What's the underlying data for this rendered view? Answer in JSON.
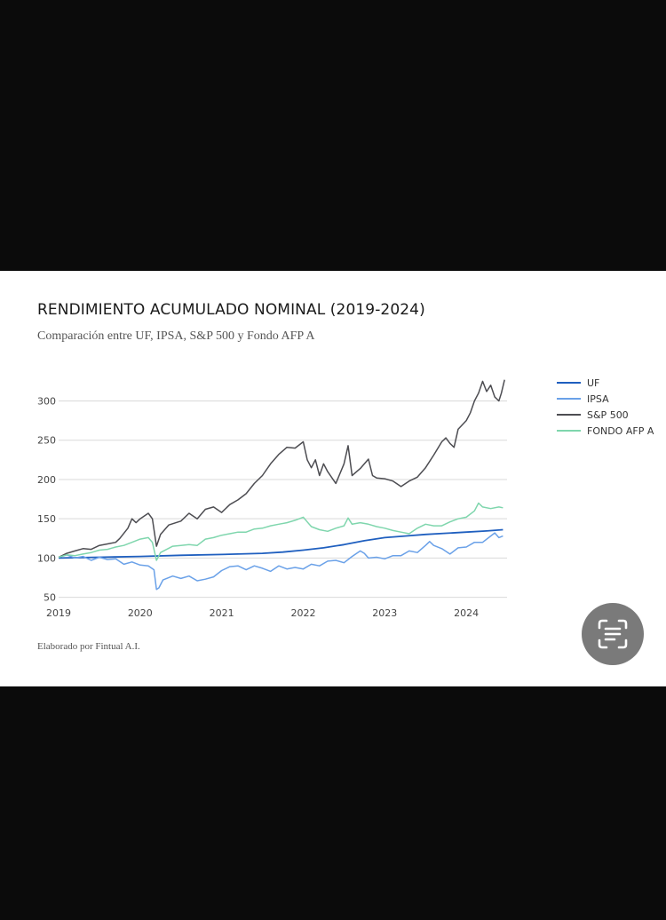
{
  "chart_data": {
    "type": "line",
    "title": "RENDIMIENTO ACUMULADO NOMINAL (2019-2024)",
    "subtitle": "Comparación entre UF, IPSA, S&P 500 y Fondo AFP A",
    "footer": "Elaborado por Fintual A.I.",
    "xlabel": "",
    "ylabel": "",
    "x_ticks": [
      "2019",
      "2020",
      "2021",
      "2022",
      "2023",
      "2024"
    ],
    "y_ticks": [
      "50",
      "100",
      "150",
      "200",
      "250",
      "300"
    ],
    "xlim": [
      2019.0,
      2024.5
    ],
    "ylim": [
      45,
      330
    ],
    "grid": "horizontal",
    "legend_position": "right",
    "series": [
      {
        "name": "UF",
        "color": "#1f5fbf",
        "points": [
          [
            2019.0,
            100
          ],
          [
            2019.5,
            101
          ],
          [
            2020.0,
            102
          ],
          [
            2020.5,
            103.5
          ],
          [
            2021.0,
            104.5
          ],
          [
            2021.5,
            106
          ],
          [
            2021.75,
            107.5
          ],
          [
            2022.0,
            110
          ],
          [
            2022.25,
            113
          ],
          [
            2022.5,
            117
          ],
          [
            2022.75,
            122
          ],
          [
            2023.0,
            126
          ],
          [
            2023.25,
            128
          ],
          [
            2023.5,
            130
          ],
          [
            2023.75,
            131.5
          ],
          [
            2024.0,
            133
          ],
          [
            2024.25,
            134.5
          ],
          [
            2024.45,
            136
          ]
        ]
      },
      {
        "name": "IPSA",
        "color": "#6aa1e8",
        "points": [
          [
            2019.0,
            101
          ],
          [
            2019.1,
            104
          ],
          [
            2019.2,
            100
          ],
          [
            2019.3,
            102
          ],
          [
            2019.4,
            97
          ],
          [
            2019.5,
            101
          ],
          [
            2019.6,
            98
          ],
          [
            2019.7,
            99
          ],
          [
            2019.8,
            92
          ],
          [
            2019.9,
            95
          ],
          [
            2020.0,
            91
          ],
          [
            2020.1,
            90
          ],
          [
            2020.17,
            85
          ],
          [
            2020.2,
            60
          ],
          [
            2020.23,
            62
          ],
          [
            2020.28,
            72
          ],
          [
            2020.4,
            77
          ],
          [
            2020.5,
            74
          ],
          [
            2020.6,
            77
          ],
          [
            2020.7,
            71
          ],
          [
            2020.8,
            73
          ],
          [
            2020.9,
            76
          ],
          [
            2021.0,
            84
          ],
          [
            2021.1,
            89
          ],
          [
            2021.2,
            90
          ],
          [
            2021.3,
            85
          ],
          [
            2021.4,
            90
          ],
          [
            2021.5,
            87
          ],
          [
            2021.6,
            83
          ],
          [
            2021.7,
            90
          ],
          [
            2021.8,
            86
          ],
          [
            2021.9,
            88
          ],
          [
            2022.0,
            86
          ],
          [
            2022.1,
            92
          ],
          [
            2022.2,
            90
          ],
          [
            2022.3,
            96
          ],
          [
            2022.4,
            97
          ],
          [
            2022.5,
            94
          ],
          [
            2022.6,
            102
          ],
          [
            2022.7,
            109
          ],
          [
            2022.75,
            106
          ],
          [
            2022.8,
            100
          ],
          [
            2022.9,
            101
          ],
          [
            2023.0,
            99
          ],
          [
            2023.1,
            103
          ],
          [
            2023.2,
            103
          ],
          [
            2023.3,
            109
          ],
          [
            2023.4,
            107
          ],
          [
            2023.5,
            116
          ],
          [
            2023.55,
            121
          ],
          [
            2023.6,
            116
          ],
          [
            2023.7,
            112
          ],
          [
            2023.8,
            105
          ],
          [
            2023.9,
            113
          ],
          [
            2024.0,
            114
          ],
          [
            2024.1,
            120
          ],
          [
            2024.2,
            120
          ],
          [
            2024.3,
            128
          ],
          [
            2024.35,
            132
          ],
          [
            2024.4,
            126
          ],
          [
            2024.45,
            128
          ]
        ]
      },
      {
        "name": "S&P 500",
        "color": "#4d4d52",
        "points": [
          [
            2019.0,
            101
          ],
          [
            2019.1,
            106
          ],
          [
            2019.2,
            109
          ],
          [
            2019.3,
            112
          ],
          [
            2019.4,
            111
          ],
          [
            2019.5,
            116
          ],
          [
            2019.6,
            118
          ],
          [
            2019.7,
            120
          ],
          [
            2019.75,
            125
          ],
          [
            2019.85,
            138
          ],
          [
            2019.9,
            150
          ],
          [
            2019.95,
            145
          ],
          [
            2020.0,
            150
          ],
          [
            2020.1,
            157
          ],
          [
            2020.15,
            150
          ],
          [
            2020.2,
            115
          ],
          [
            2020.25,
            130
          ],
          [
            2020.35,
            142
          ],
          [
            2020.5,
            147
          ],
          [
            2020.6,
            157
          ],
          [
            2020.7,
            150
          ],
          [
            2020.8,
            162
          ],
          [
            2020.9,
            165
          ],
          [
            2021.0,
            158
          ],
          [
            2021.1,
            168
          ],
          [
            2021.2,
            174
          ],
          [
            2021.3,
            182
          ],
          [
            2021.4,
            195
          ],
          [
            2021.5,
            205
          ],
          [
            2021.6,
            220
          ],
          [
            2021.7,
            232
          ],
          [
            2021.8,
            241
          ],
          [
            2021.9,
            240
          ],
          [
            2022.0,
            248
          ],
          [
            2022.05,
            225
          ],
          [
            2022.1,
            215
          ],
          [
            2022.15,
            225
          ],
          [
            2022.2,
            205
          ],
          [
            2022.25,
            220
          ],
          [
            2022.3,
            210
          ],
          [
            2022.4,
            195
          ],
          [
            2022.5,
            220
          ],
          [
            2022.55,
            243
          ],
          [
            2022.6,
            205
          ],
          [
            2022.7,
            214
          ],
          [
            2022.8,
            226
          ],
          [
            2022.85,
            205
          ],
          [
            2022.9,
            202
          ],
          [
            2023.0,
            201
          ],
          [
            2023.1,
            198
          ],
          [
            2023.2,
            191
          ],
          [
            2023.3,
            198
          ],
          [
            2023.4,
            203
          ],
          [
            2023.5,
            215
          ],
          [
            2023.6,
            231
          ],
          [
            2023.7,
            248
          ],
          [
            2023.75,
            253
          ],
          [
            2023.8,
            246
          ],
          [
            2023.85,
            241
          ],
          [
            2023.9,
            264
          ],
          [
            2024.0,
            275
          ],
          [
            2024.05,
            285
          ],
          [
            2024.1,
            300
          ],
          [
            2024.15,
            310
          ],
          [
            2024.2,
            325
          ],
          [
            2024.25,
            312
          ],
          [
            2024.3,
            320
          ],
          [
            2024.35,
            305
          ],
          [
            2024.4,
            300
          ],
          [
            2024.43,
            310
          ],
          [
            2024.47,
            327
          ]
        ]
      },
      {
        "name": "FONDO AFP A",
        "color": "#7fd6ad",
        "points": [
          [
            2019.0,
            101
          ],
          [
            2019.1,
            104
          ],
          [
            2019.2,
            103
          ],
          [
            2019.3,
            105
          ],
          [
            2019.4,
            107
          ],
          [
            2019.5,
            110
          ],
          [
            2019.6,
            111
          ],
          [
            2019.7,
            114
          ],
          [
            2019.8,
            116
          ],
          [
            2019.9,
            120
          ],
          [
            2020.0,
            124
          ],
          [
            2020.1,
            126
          ],
          [
            2020.15,
            120
          ],
          [
            2020.2,
            97
          ],
          [
            2020.25,
            107
          ],
          [
            2020.4,
            115
          ],
          [
            2020.5,
            116
          ],
          [
            2020.6,
            117
          ],
          [
            2020.7,
            116
          ],
          [
            2020.8,
            124
          ],
          [
            2020.9,
            126
          ],
          [
            2021.0,
            129
          ],
          [
            2021.1,
            131
          ],
          [
            2021.2,
            133
          ],
          [
            2021.3,
            133
          ],
          [
            2021.4,
            137
          ],
          [
            2021.5,
            138
          ],
          [
            2021.6,
            141
          ],
          [
            2021.7,
            143
          ],
          [
            2021.8,
            145
          ],
          [
            2021.9,
            148
          ],
          [
            2022.0,
            152
          ],
          [
            2022.05,
            146
          ],
          [
            2022.1,
            140
          ],
          [
            2022.2,
            136
          ],
          [
            2022.3,
            134
          ],
          [
            2022.4,
            138
          ],
          [
            2022.5,
            141
          ],
          [
            2022.55,
            151
          ],
          [
            2022.6,
            143
          ],
          [
            2022.7,
            145
          ],
          [
            2022.8,
            143
          ],
          [
            2022.9,
            140
          ],
          [
            2023.0,
            138
          ],
          [
            2023.1,
            135
          ],
          [
            2023.2,
            133
          ],
          [
            2023.3,
            131
          ],
          [
            2023.4,
            138
          ],
          [
            2023.5,
            143
          ],
          [
            2023.6,
            141
          ],
          [
            2023.7,
            141
          ],
          [
            2023.8,
            146
          ],
          [
            2023.9,
            150
          ],
          [
            2024.0,
            152
          ],
          [
            2024.1,
            160
          ],
          [
            2024.15,
            170
          ],
          [
            2024.2,
            165
          ],
          [
            2024.3,
            163
          ],
          [
            2024.4,
            165
          ],
          [
            2024.45,
            164
          ]
        ]
      }
    ]
  },
  "lens_button": {
    "icon": "text-scan-icon"
  }
}
